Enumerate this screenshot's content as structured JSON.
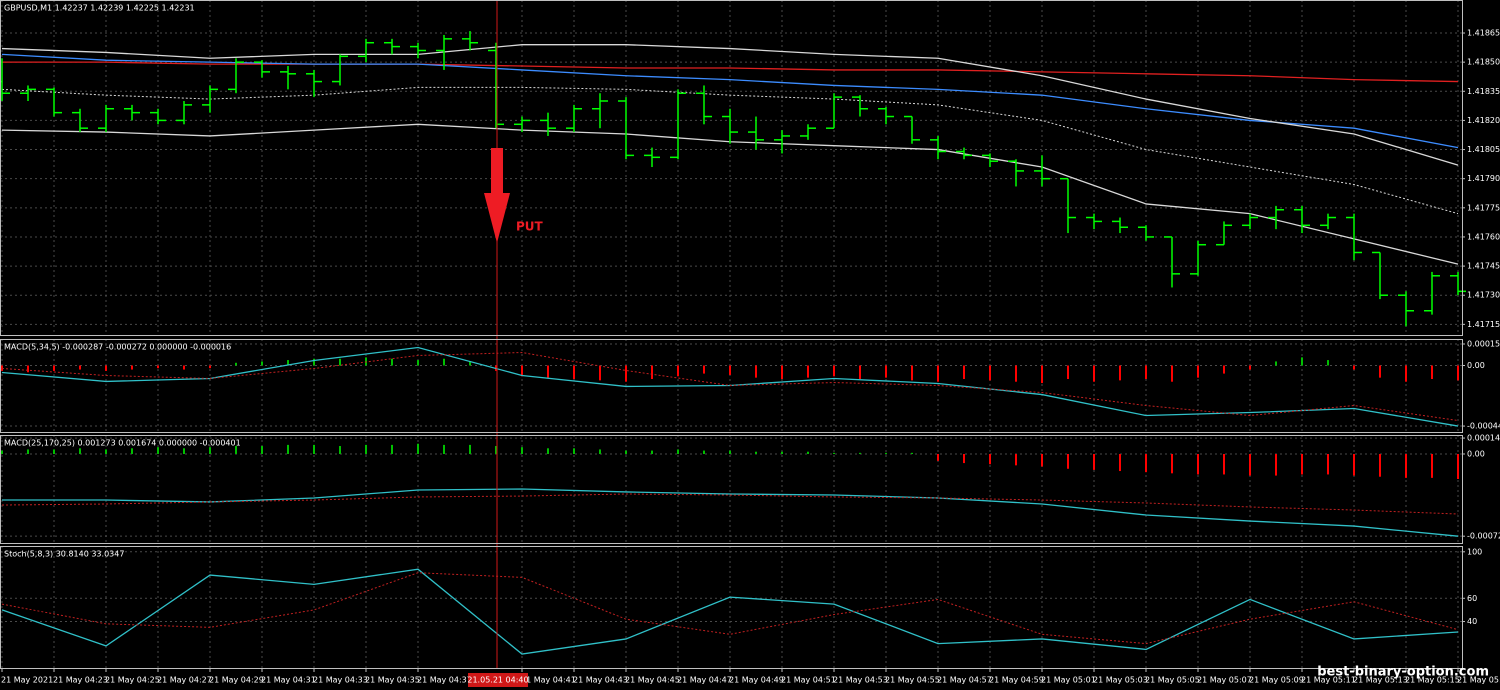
{
  "chart_data": [
    {
      "type": "ohlc",
      "title": "GBPUSD,M1  1.42237 1.42239 1.42225 1.42231",
      "annotation": "PUT",
      "cursor_label": "21.05.21 04:40",
      "watermark": "best-binary-option.com",
      "color": "#00ff00",
      "grid": true,
      "categories": [
        "21 May 2021",
        null,
        "21 May 04:23",
        null,
        "21 May 04:25",
        null,
        "21 May 04:27",
        null,
        "21 May 04:29",
        null,
        "21 May 04:31",
        null,
        "21 May 04:33",
        null,
        "21 May 04:35",
        null,
        "21 May 04:37",
        null,
        null,
        null,
        "21 May 04:41",
        null,
        "21 May 04:43",
        null,
        "21 May 04:45",
        null,
        "21 May 04:47",
        null,
        "21 May 04:49",
        null,
        "21 May 04:51",
        null,
        "21 May 04:53",
        null,
        "21 May 04:55",
        null,
        "21 May 04:57",
        null,
        "21 May 04:59",
        null,
        "21 May 05:01",
        null,
        "21 May 05:03",
        null,
        "21 May 05:05",
        null,
        "21 May 05:07",
        null,
        "21 May 05:09",
        null,
        "21 May 05:11",
        null,
        "21 May 05:13",
        null,
        "21 May 05:15",
        null,
        "21 May 05:"
      ],
      "open": [
        1.4184,
        1.41834,
        1.41836,
        1.41824,
        1.41816,
        1.41826,
        1.41824,
        1.4182,
        1.41828,
        1.41836,
        1.4185,
        1.41845,
        1.41844,
        1.4184,
        1.41853,
        1.4186,
        1.41858,
        1.41856,
        1.41862,
        1.41856,
        1.41818,
        1.4182,
        1.41816,
        1.41826,
        1.4183,
        1.41802,
        1.41801,
        1.41834,
        1.41822,
        1.41814,
        1.4181,
        1.41812,
        1.41816,
        1.41832,
        1.41826,
        1.41822,
        1.4181,
        1.41804,
        1.41802,
        1.41799,
        1.41794,
        1.4179,
        1.4177,
        1.41768,
        1.41765,
        1.4176,
        1.41741,
        1.41756,
        1.41766,
        1.4177,
        1.41774,
        1.41766,
        1.4177,
        1.41752,
        1.4173,
        1.41722,
        1.4174
      ],
      "high": [
        1.41852,
        1.41838,
        1.41837,
        1.41826,
        1.41828,
        1.41828,
        1.41826,
        1.4183,
        1.41838,
        1.41852,
        1.41851,
        1.41848,
        1.41846,
        1.41854,
        1.41862,
        1.41862,
        1.4186,
        1.41864,
        1.41866,
        1.4186,
        1.41822,
        1.41824,
        1.41828,
        1.41834,
        1.41832,
        1.41806,
        1.41836,
        1.41838,
        1.41826,
        1.41822,
        1.41815,
        1.41818,
        1.41834,
        1.41833,
        1.41827,
        1.41822,
        1.41812,
        1.41806,
        1.41803,
        1.418,
        1.41802,
        1.4179,
        1.41772,
        1.4177,
        1.41766,
        1.4176,
        1.41758,
        1.41768,
        1.41772,
        1.41776,
        1.41776,
        1.41772,
        1.41772,
        1.41752,
        1.41732,
        1.41742,
        1.41742
      ],
      "low": [
        1.4183,
        1.4183,
        1.41822,
        1.41814,
        1.41814,
        1.4182,
        1.41818,
        1.41818,
        1.41824,
        1.41834,
        1.41842,
        1.41836,
        1.41832,
        1.41838,
        1.4185,
        1.41854,
        1.41852,
        1.41846,
        1.41856,
        1.41816,
        1.41814,
        1.41812,
        1.41814,
        1.41816,
        1.418,
        1.41796,
        1.418,
        1.41818,
        1.41808,
        1.41805,
        1.41803,
        1.4181,
        1.41816,
        1.41822,
        1.41818,
        1.41808,
        1.418,
        1.418,
        1.41796,
        1.41786,
        1.41786,
        1.41762,
        1.41764,
        1.41762,
        1.41758,
        1.41734,
        1.4174,
        1.41756,
        1.41764,
        1.41764,
        1.41762,
        1.41764,
        1.41748,
        1.41728,
        1.41714,
        1.4172,
        1.4173
      ],
      "close": [
        1.41834,
        1.41836,
        1.41824,
        1.41816,
        1.41826,
        1.41824,
        1.4182,
        1.41828,
        1.41836,
        1.4185,
        1.41845,
        1.41844,
        1.4184,
        1.41853,
        1.4186,
        1.41858,
        1.41856,
        1.41862,
        1.4186,
        1.41818,
        1.4182,
        1.41816,
        1.41826,
        1.4183,
        1.41802,
        1.41801,
        1.41834,
        1.41822,
        1.41814,
        1.4181,
        1.41812,
        1.41816,
        1.41832,
        1.41826,
        1.41822,
        1.4181,
        1.41804,
        1.41802,
        1.41799,
        1.41794,
        1.4179,
        1.4177,
        1.41768,
        1.41765,
        1.4176,
        1.41741,
        1.41756,
        1.41766,
        1.4177,
        1.41774,
        1.41766,
        1.4177,
        1.41752,
        1.4173,
        1.41722,
        1.4174,
        1.41732
      ],
      "lines": [
        {
          "color": "#e02020",
          "style": "solid",
          "x": [
            0,
            4,
            8,
            12,
            16,
            20,
            24,
            28,
            32,
            36,
            40,
            44,
            48,
            52,
            56
          ],
          "values": [
            1.4185,
            1.4185,
            1.41849,
            1.41849,
            1.41849,
            1.41848,
            1.41847,
            1.41847,
            1.41846,
            1.41846,
            1.41845,
            1.41844,
            1.41843,
            1.41841,
            1.4184
          ]
        },
        {
          "color": "#3c8cff",
          "style": "solid",
          "x": [
            0,
            4,
            8,
            12,
            16,
            20,
            24,
            28,
            32,
            36,
            40,
            44,
            48,
            52,
            56
          ],
          "values": [
            1.41854,
            1.41851,
            1.4185,
            1.41849,
            1.41849,
            1.41846,
            1.41843,
            1.41841,
            1.41838,
            1.41836,
            1.41833,
            1.41826,
            1.4182,
            1.41816,
            1.41806
          ]
        },
        {
          "color": "#d8d8d8",
          "style": "solid",
          "x": [
            0,
            4,
            8,
            12,
            16,
            20,
            24,
            28,
            32,
            36,
            40,
            44,
            48,
            52,
            56
          ],
          "values": [
            1.41857,
            1.41855,
            1.41852,
            1.41854,
            1.41854,
            1.41859,
            1.41859,
            1.41857,
            1.41854,
            1.41852,
            1.41843,
            1.41831,
            1.41821,
            1.41813,
            1.41797
          ]
        },
        {
          "color": "#d8d8d8",
          "style": "dotted",
          "x": [
            0,
            4,
            8,
            12,
            16,
            20,
            24,
            28,
            32,
            36,
            40,
            44,
            48,
            52,
            56
          ],
          "values": [
            1.41836,
            1.41833,
            1.41831,
            1.41833,
            1.41837,
            1.41837,
            1.41836,
            1.41833,
            1.41831,
            1.41828,
            1.4182,
            1.41805,
            1.41796,
            1.41787,
            1.41772
          ]
        },
        {
          "color": "#d8d8d8",
          "style": "solid",
          "x": [
            0,
            4,
            8,
            12,
            16,
            20,
            24,
            28,
            32,
            36,
            40,
            44,
            48,
            52,
            56
          ],
          "values": [
            1.41815,
            1.41814,
            1.41812,
            1.41815,
            1.41818,
            1.41815,
            1.41813,
            1.41809,
            1.41807,
            1.41805,
            1.41796,
            1.41777,
            1.41772,
            1.41759,
            1.41746
          ]
        }
      ],
      "ylim": [
        1.41709,
        1.41882
      ],
      "yticks": [
        1.41865,
        {
          "value": 1.4185,
          "label": "1.41850"
        },
        1.41835,
        {
          "value": 1.4182,
          "label": "1.41820"
        },
        1.41805,
        {
          "value": 1.4179,
          "label": "1.41790"
        },
        1.41775,
        {
          "value": 1.4176,
          "label": "1.41760"
        },
        1.41745,
        {
          "value": 1.4173,
          "label": "1.41730"
        },
        1.41715
      ]
    },
    {
      "type": "indicator",
      "title": "MACD(5,34,5) -0.000287 -0.000272 0.000000 -0.000016",
      "grid": true,
      "histogram": {
        "up_color": "#00c000",
        "down_color": "#ff0000",
        "values": [
          -4e-05,
          -5e-05,
          -4e-05,
          -3e-05,
          -4e-05,
          -3e-05,
          -2e-05,
          -3e-05,
          -2e-05,
          2e-05,
          3e-05,
          4e-05,
          5e-05,
          5e-05,
          6e-05,
          5e-05,
          4e-05,
          5e-05,
          3e-05,
          -4e-05,
          -8e-05,
          -9e-05,
          -0.0001,
          -0.00011,
          -0.00012,
          -0.0001,
          -8e-05,
          -6e-05,
          -7e-05,
          -9e-05,
          -0.0001,
          -9e-05,
          -8e-05,
          -0.0001,
          -9e-05,
          -0.00011,
          -0.00012,
          -0.0001,
          -0.00011,
          -0.00012,
          -0.00013,
          -0.0001,
          -0.00012,
          -0.00011,
          -0.0001,
          -0.00012,
          -9e-05,
          -6e-05,
          -3e-05,
          3e-05,
          6e-05,
          4e-05,
          -3e-05,
          -9e-05,
          -0.00012,
          -0.0001,
          -0.00011
        ]
      },
      "lines": [
        {
          "color": "#30c0c8",
          "style": "solid",
          "x": [
            0,
            4,
            8,
            12,
            16,
            20,
            24,
            28,
            32,
            36,
            40,
            44,
            48,
            52,
            56
          ],
          "values": [
            -5.2e-05,
            -0.000118,
            -9.6e-05,
            3.7e-05,
            0.000133,
            -7.4e-05,
            -0.000155,
            -0.000148,
            -9.6e-05,
            -0.000133,
            -0.000215,
            -0.00037,
            -0.000348,
            -0.000318,
            -0.000448
          ]
        },
        {
          "color": "#c02020",
          "style": "dotted",
          "x": [
            0,
            4,
            8,
            12,
            16,
            20,
            24,
            28,
            32,
            36,
            40,
            44,
            48,
            52,
            56
          ],
          "values": [
            -2.2e-05,
            -7.4e-05,
            -9.6e-05,
            -2.2e-05,
            7.4e-05,
            9.6e-05,
            -3.7e-05,
            -0.000148,
            -0.000126,
            -0.000148,
            -0.0002,
            -0.000296,
            -0.00037,
            -0.000296,
            -0.000407
          ]
        }
      ],
      "ylim": [
        -0.000492,
        0.000196
      ],
      "yticks": [
        0.000159,
        {
          "value": 0,
          "label": "0.00"
        },
        -0.000448
      ]
    },
    {
      "type": "indicator",
      "title": "MACD(25,170,25) 0.001273 0.001674 0.000000 -0.000401",
      "grid": true,
      "histogram": {
        "up_color": "#00c000",
        "down_color": "#ff0000",
        "values": [
          3e-05,
          4e-05,
          4e-05,
          5e-05,
          4e-05,
          5e-05,
          6e-05,
          5e-05,
          6e-05,
          7e-05,
          7e-05,
          8e-05,
          8e-05,
          7e-05,
          8e-05,
          8e-05,
          9e-05,
          8e-05,
          8e-05,
          7e-05,
          6e-05,
          5e-05,
          5e-05,
          4e-05,
          3e-05,
          3e-05,
          4e-05,
          3e-05,
          3e-05,
          2e-05,
          2e-05,
          2e-05,
          1e-05,
          1e-05,
          1e-05,
          1e-05,
          -6e-05,
          -8e-05,
          -9e-05,
          -0.0001,
          -0.00011,
          -0.00013,
          -0.00014,
          -0.00015,
          -0.00016,
          -0.00017,
          -0.00018,
          -0.00018,
          -0.00019,
          -0.00019,
          -0.00018,
          -0.00018,
          -0.00019,
          -0.0002,
          -0.00021,
          -0.00021,
          -0.00022
        ]
      },
      "lines": [
        {
          "color": "#30c0c8",
          "style": "solid",
          "x": [
            0,
            4,
            8,
            12,
            16,
            20,
            24,
            28,
            32,
            36,
            40,
            44,
            48,
            52,
            56
          ],
          "values": [
            -0.000405,
            -0.000405,
            -0.000422,
            -0.000387,
            -0.000317,
            -0.000308,
            -0.000334,
            -0.000352,
            -0.000361,
            -0.000387,
            -0.00044,
            -0.000537,
            -0.00059,
            -0.000634,
            -0.000723
          ]
        },
        {
          "color": "#c02020",
          "style": "dotted",
          "x": [
            0,
            4,
            8,
            12,
            16,
            20,
            24,
            28,
            32,
            36,
            40,
            44,
            48,
            52,
            56
          ],
          "values": [
            -0.000449,
            -0.00044,
            -0.000422,
            -0.000405,
            -0.000378,
            -0.00037,
            -0.000352,
            -0.000361,
            -0.000378,
            -0.000387,
            -0.000405,
            -0.000431,
            -0.000466,
            -0.000493,
            -0.000528
          ]
        }
      ],
      "ylim": [
        -0.000783,
        0.000167
      ],
      "yticks": [
        0.00014,
        {
          "value": 0,
          "label": "0.00"
        },
        -0.000723
      ]
    },
    {
      "type": "indicator",
      "title": "Stoch(5,8,3) 30.8140 33.0347",
      "grid": true,
      "lines": [
        {
          "color": "#30c0c8",
          "style": "solid",
          "x": [
            0,
            4,
            8,
            12,
            16,
            20,
            24,
            28,
            32,
            36,
            40,
            44,
            48,
            52,
            56
          ],
          "values": [
            50,
            19,
            80,
            72,
            85,
            12,
            25,
            61,
            55,
            21,
            25,
            16,
            59,
            25,
            31
          ]
        },
        {
          "color": "#c02020",
          "style": "dotted",
          "x": [
            0,
            4,
            8,
            12,
            16,
            20,
            24,
            28,
            32,
            36,
            40,
            44,
            48,
            52,
            56
          ],
          "values": [
            55,
            38,
            35,
            50,
            82,
            78,
            42,
            29,
            46,
            59,
            29,
            21,
            42,
            57,
            33
          ]
        }
      ],
      "ylim": [
        0,
        105
      ],
      "yticks": [
        100,
        60,
        40
      ]
    }
  ]
}
